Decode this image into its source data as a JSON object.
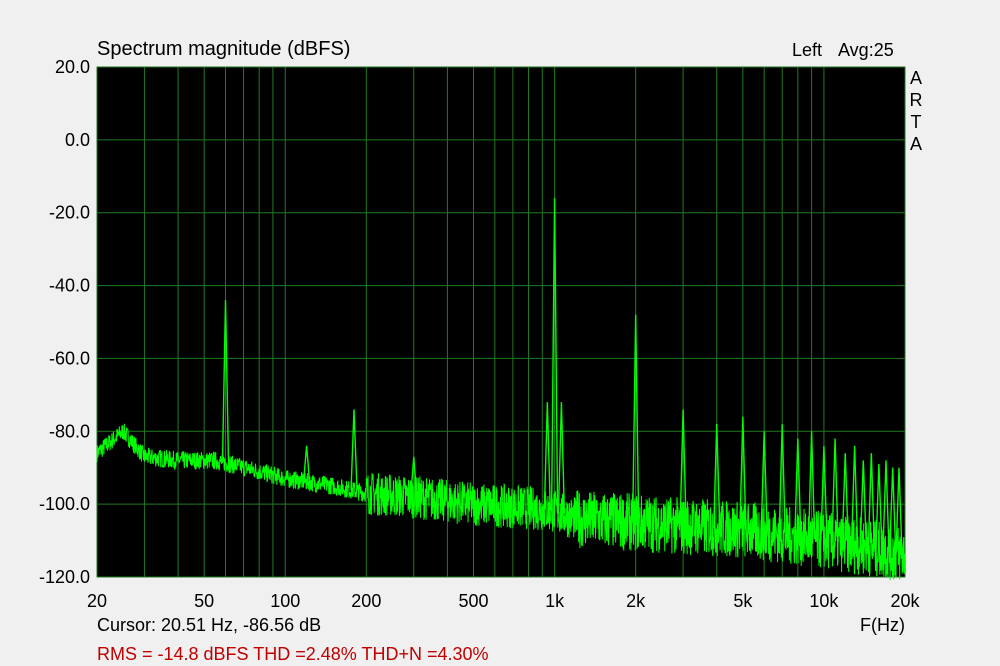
{
  "chart_data": {
    "type": "line",
    "title": "Spectrum magnitude (dBFS)",
    "channel_label": "Left",
    "avg_label": "Avg:25",
    "brand_letters": [
      "A",
      "R",
      "T",
      "A"
    ],
    "xlabel": "F(Hz)",
    "ylabel": "",
    "x_scale": "log",
    "xlim": [
      20,
      20000
    ],
    "ylim": [
      -120,
      20
    ],
    "grid": true,
    "y_ticks": [
      20,
      0,
      -20,
      -40,
      -60,
      -80,
      -100,
      -120
    ],
    "y_tick_labels": [
      "20.0",
      "0.0",
      "-20.0",
      "-40.0",
      "-60.0",
      "-80.0",
      "-100.0",
      "-120.0"
    ],
    "x_ticks": [
      20,
      50,
      100,
      200,
      500,
      1000,
      2000,
      5000,
      10000,
      20000
    ],
    "x_tick_labels": [
      "20",
      "50",
      "100",
      "200",
      "500",
      "1k",
      "2k",
      "5k",
      "10k",
      "20k"
    ],
    "x_minor_grid": [
      30,
      40,
      60,
      70,
      80,
      90,
      300,
      400,
      600,
      700,
      800,
      900,
      3000,
      4000,
      6000,
      7000,
      8000,
      9000
    ],
    "line_color": "#00ff00",
    "background_color": "#000000",
    "grid_color": "#1f7a1f",
    "noise_floor": {
      "x": [
        20,
        25,
        30,
        40,
        55,
        80,
        100,
        150,
        200,
        300,
        500,
        800,
        1000,
        1200,
        2000,
        3000,
        5000,
        8000,
        10000,
        15000,
        20000
      ],
      "y": [
        -86,
        -80,
        -87,
        -88,
        -88,
        -91,
        -93,
        -95,
        -97,
        -98,
        -100,
        -101,
        -102,
        -104,
        -105,
        -106,
        -107,
        -109,
        -110,
        -112,
        -114
      ]
    },
    "peaks": [
      {
        "x": 60,
        "y": -44
      },
      {
        "x": 120,
        "y": -84
      },
      {
        "x": 180,
        "y": -74
      },
      {
        "x": 300,
        "y": -87
      },
      {
        "x": 940,
        "y": -72
      },
      {
        "x": 1000,
        "y": -16
      },
      {
        "x": 1060,
        "y": -72
      },
      {
        "x": 2000,
        "y": -48
      },
      {
        "x": 3000,
        "y": -74
      },
      {
        "x": 4000,
        "y": -78
      },
      {
        "x": 5000,
        "y": -76
      },
      {
        "x": 6000,
        "y": -80
      },
      {
        "x": 7000,
        "y": -78
      },
      {
        "x": 8000,
        "y": -82
      },
      {
        "x": 9000,
        "y": -80
      },
      {
        "x": 10000,
        "y": -84
      },
      {
        "x": 11000,
        "y": -82
      },
      {
        "x": 12000,
        "y": -86
      },
      {
        "x": 13000,
        "y": -84
      },
      {
        "x": 14000,
        "y": -88
      },
      {
        "x": 15000,
        "y": -86
      },
      {
        "x": 16000,
        "y": -89
      },
      {
        "x": 17000,
        "y": -88
      },
      {
        "x": 18000,
        "y": -90
      },
      {
        "x": 19000,
        "y": -90
      }
    ]
  },
  "status": {
    "cursor": "Cursor: 20.51 Hz, -86.56 dB",
    "measurements": "RMS =  -14.8 dBFS  THD =2.48%  THD+N =4.30%"
  }
}
